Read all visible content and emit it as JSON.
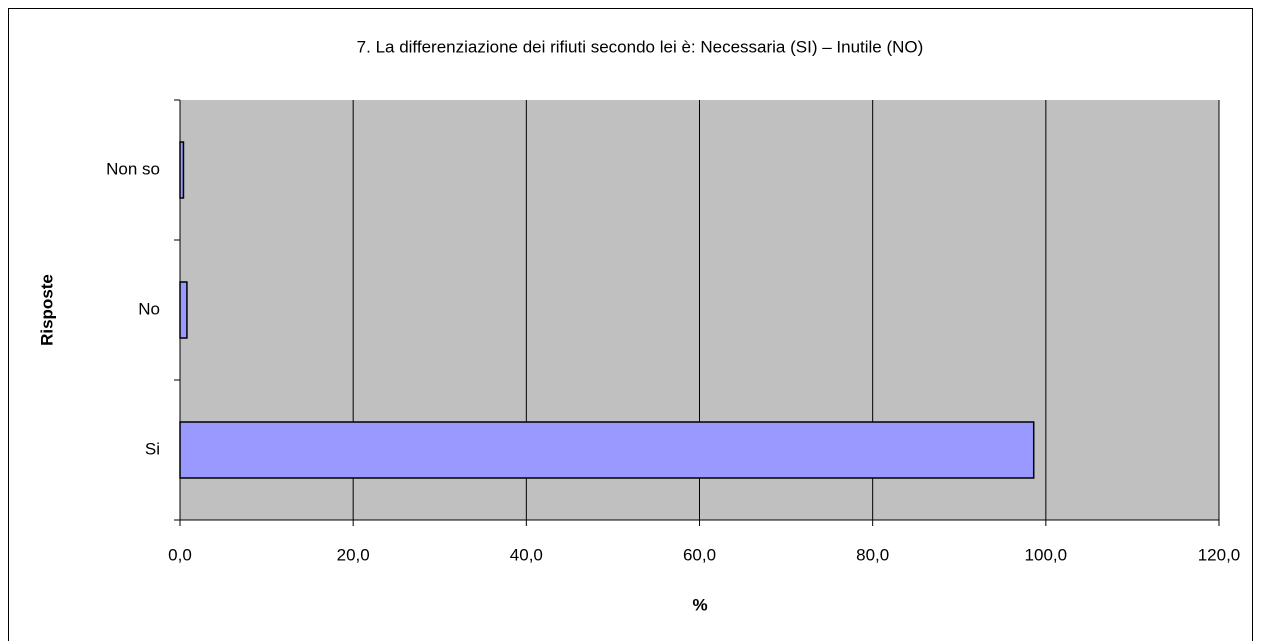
{
  "chart_data": {
    "type": "bar",
    "orientation": "horizontal",
    "title": "7. La differenziazione dei rifiuti secondo lei è:  Necessaria (SI) – Inutile (NO)",
    "x_label": "%",
    "y_label": "Risposte",
    "categories": [
      "Si",
      "No",
      "Non so"
    ],
    "values": [
      98.6,
      0.8,
      0.4
    ],
    "color": "#9999ff",
    "xlim": [
      0,
      120
    ],
    "xticks": [
      {
        "value": 0,
        "label": "0,0"
      },
      {
        "value": 20,
        "label": "20,0"
      },
      {
        "value": 40,
        "label": "40,0"
      },
      {
        "value": 60,
        "label": "60,0"
      },
      {
        "value": 80,
        "label": "80,0"
      },
      {
        "value": 100,
        "label": "100,0"
      },
      {
        "value": 120,
        "label": "120,0"
      }
    ],
    "grid": true
  }
}
